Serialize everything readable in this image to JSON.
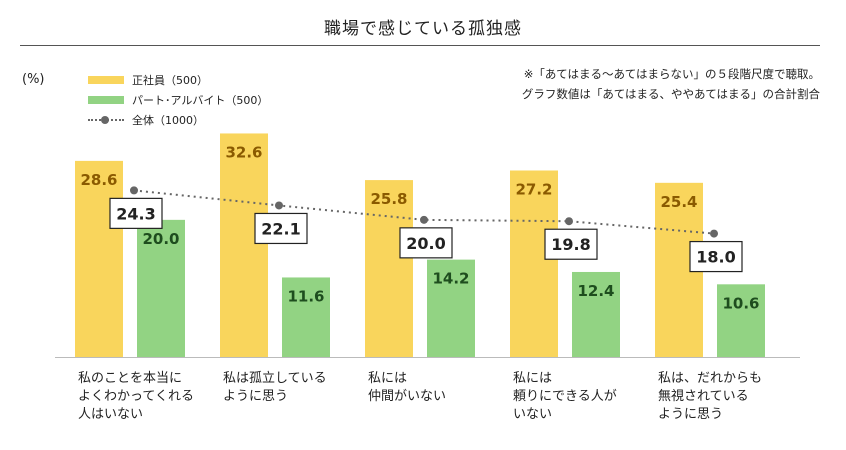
{
  "title": "職場で感じている孤独感",
  "unit": "(%)",
  "legend": [
    {
      "label": "正社員（500）",
      "color": "#f9d55c",
      "kind": "bar"
    },
    {
      "label": "パート･アルバイト（500）",
      "color": "#92d383",
      "kind": "bar"
    },
    {
      "label": "全体（1000）",
      "color": "#666666",
      "kind": "line"
    }
  ],
  "notes": [
    "※「あてはまる～あてはまらない」の５段階尺度で聴取。",
    "グラフ数値は「あてはまる、ややあてはまる」の合計割合"
  ],
  "chart_data": {
    "type": "bar",
    "title": "職場で感じている孤独感",
    "ylabel": "(%)",
    "ylim": [
      0,
      35
    ],
    "categories": [
      "私のことを本当によくわかってくれる人はいない",
      "私は孤立しているように思う",
      "私には仲間がいない",
      "私には頼りにできる人がいない",
      "私は、だれからも無視されているように思う"
    ],
    "category_lines": [
      [
        "私のことを本当に",
        "よくわかってくれる",
        "人はいない"
      ],
      [
        "私は孤立している",
        "ように思う"
      ],
      [
        "私には",
        "仲間がいない"
      ],
      [
        "私には",
        "頼りにできる人が",
        "いない"
      ],
      [
        "私は、だれからも",
        "無視されている",
        "ように思う"
      ]
    ],
    "series": [
      {
        "name": "正社員（500）",
        "type": "bar",
        "color": "#f9d55c",
        "label_color": "#8a5a00",
        "values": [
          28.6,
          32.6,
          25.8,
          27.2,
          25.4
        ]
      },
      {
        "name": "パート･アルバイト（500）",
        "type": "bar",
        "color": "#92d383",
        "label_color": "#1e4d1e",
        "values": [
          20.0,
          11.6,
          14.2,
          12.4,
          10.6
        ]
      },
      {
        "name": "全体（1000）",
        "type": "line",
        "color": "#666666",
        "values": [
          24.3,
          22.1,
          20.0,
          19.8,
          18.0
        ]
      }
    ],
    "grid": false,
    "legend_position": "top-left"
  }
}
